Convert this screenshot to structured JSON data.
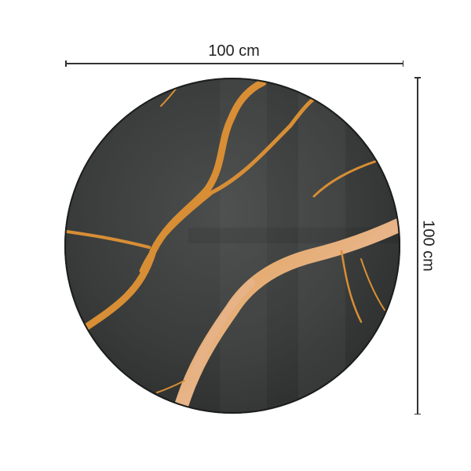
{
  "product": {
    "width_label": "100 cm",
    "height_label": "100 cm",
    "shape": "round",
    "colors": {
      "marble": "#3a3d3c",
      "vein": "#d9923a",
      "line": "#333333"
    }
  }
}
